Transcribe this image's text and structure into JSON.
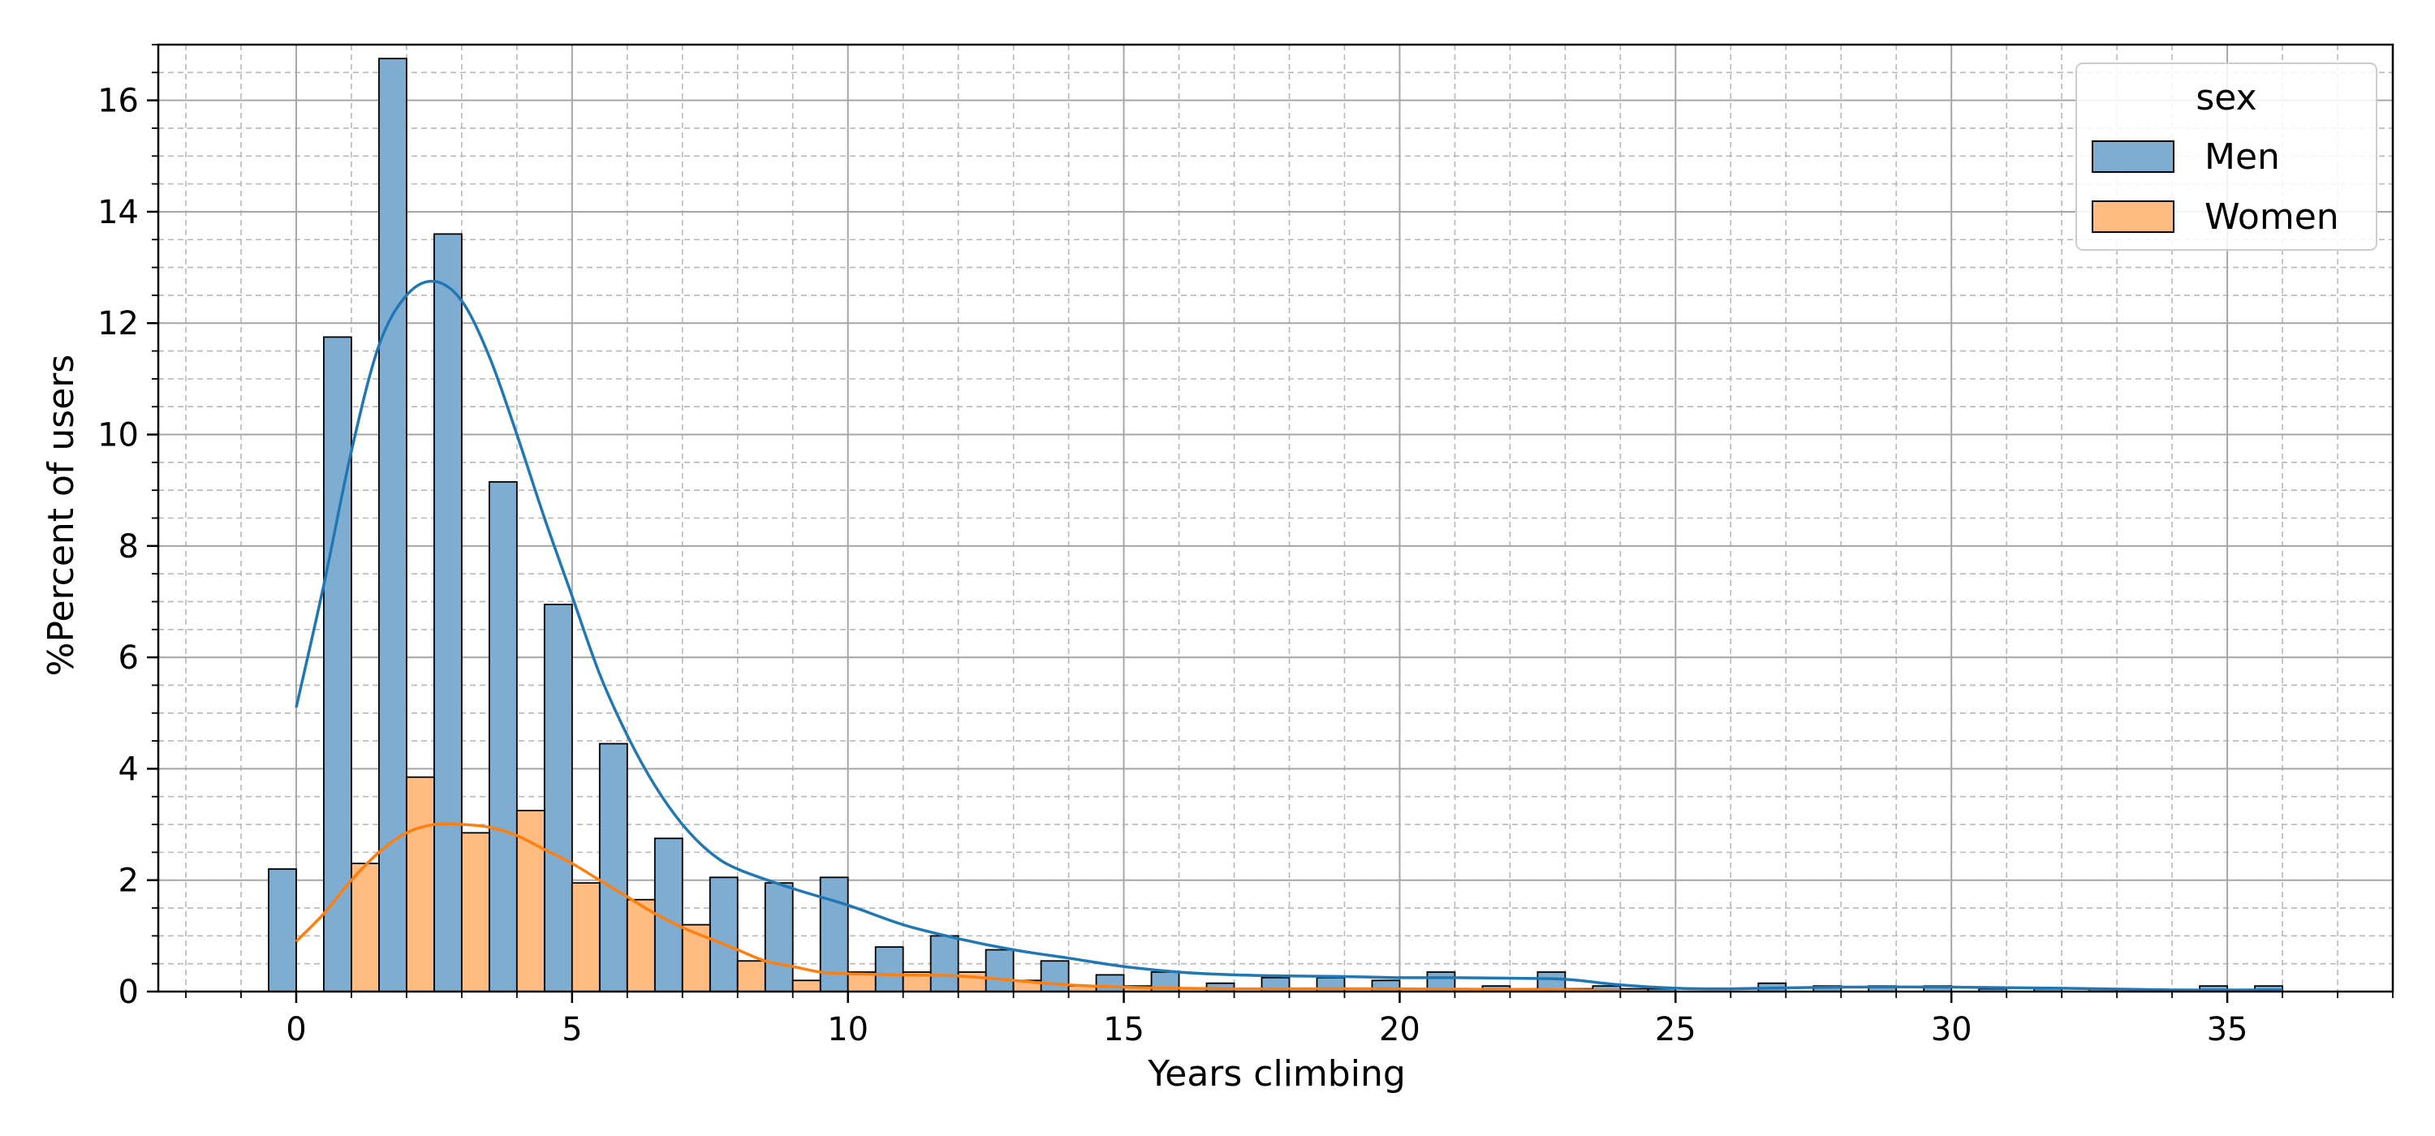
{
  "chart_data": {
    "type": "bar",
    "xlabel": "Years climbing",
    "ylabel": "%Percent of users",
    "xlim": [
      -2.5,
      38.0
    ],
    "ylim": [
      0,
      17.0
    ],
    "x_ticks": [
      0,
      5,
      10,
      15,
      20,
      25,
      30,
      35
    ],
    "y_ticks": [
      0,
      2,
      4,
      6,
      8,
      10,
      12,
      14,
      16
    ],
    "x_minor_step": 1,
    "y_minor_step": 0.5,
    "grid": true,
    "legend": {
      "title": "sex",
      "position": "top-right",
      "entries": [
        "Men",
        "Women"
      ]
    },
    "bar_width": 0.5,
    "series": [
      {
        "name": "Men",
        "color": "#7fadd1",
        "kde_color": "#1f77b4",
        "x": [
          0,
          1,
          2,
          3,
          4,
          5,
          6,
          7,
          8,
          9,
          10,
          11,
          12,
          13,
          14,
          15,
          16,
          17,
          18,
          19,
          20,
          21,
          22,
          23,
          24,
          25,
          26,
          27,
          28,
          29,
          30,
          31,
          32,
          33,
          34,
          35,
          36
        ],
        "values": [
          2.2,
          11.75,
          16.75,
          13.6,
          9.15,
          6.95,
          4.45,
          2.75,
          2.05,
          1.95,
          2.05,
          0.8,
          1.0,
          0.75,
          0.55,
          0.3,
          0.35,
          0.15,
          0.25,
          0.25,
          0.2,
          0.35,
          0.1,
          0.35,
          0.1,
          0.05,
          0.0,
          0.15,
          0.1,
          0.1,
          0.1,
          0.05,
          0.05,
          0.05,
          0.0,
          0.1,
          0.1
        ],
        "kde": {
          "x": [
            0,
            0.5,
            1,
            1.5,
            2,
            2.5,
            3,
            3.5,
            4,
            4.5,
            5,
            5.5,
            6,
            6.5,
            7,
            7.5,
            8,
            9,
            10,
            11,
            12,
            13,
            14,
            15,
            16,
            17,
            18,
            19,
            20,
            21,
            22,
            23,
            24,
            25,
            26,
            28,
            30,
            32,
            34,
            36
          ],
          "y": [
            5.1,
            7.3,
            9.7,
            11.6,
            12.5,
            12.75,
            12.4,
            11.4,
            10.0,
            8.5,
            7.1,
            5.7,
            4.6,
            3.7,
            3.0,
            2.5,
            2.2,
            1.85,
            1.55,
            1.2,
            0.95,
            0.75,
            0.6,
            0.45,
            0.35,
            0.3,
            0.28,
            0.27,
            0.25,
            0.25,
            0.24,
            0.22,
            0.12,
            0.06,
            0.05,
            0.08,
            0.08,
            0.06,
            0.03,
            0.03
          ]
        }
      },
      {
        "name": "Women",
        "color": "#ffbb80",
        "kde_color": "#ff7f0e",
        "x": [
          1,
          2,
          3,
          4,
          5,
          6,
          7,
          8,
          9,
          10,
          11,
          12,
          13,
          14,
          15,
          16,
          17,
          18,
          19,
          20,
          21,
          22,
          23,
          24
        ],
        "values": [
          2.3,
          3.85,
          2.85,
          3.25,
          1.95,
          1.65,
          1.2,
          0.55,
          0.2,
          0.35,
          0.35,
          0.35,
          0.2,
          0.1,
          0.1,
          0.05,
          0.0,
          0.05,
          0.05,
          0.05,
          0.05,
          0.05,
          0.05,
          0.05
        ],
        "kde": {
          "x": [
            0,
            0.5,
            1,
            1.5,
            2,
            2.5,
            3,
            3.5,
            4,
            4.5,
            5,
            5.5,
            6,
            6.5,
            7,
            7.5,
            8,
            8.5,
            9,
            9.5,
            10,
            11,
            12,
            13,
            14,
            15,
            16,
            17,
            18,
            20,
            22,
            24
          ],
          "y": [
            0.9,
            1.4,
            2.0,
            2.5,
            2.85,
            3.0,
            3.0,
            2.95,
            2.8,
            2.55,
            2.3,
            2.0,
            1.7,
            1.4,
            1.15,
            0.95,
            0.75,
            0.55,
            0.45,
            0.35,
            0.32,
            0.3,
            0.28,
            0.2,
            0.12,
            0.08,
            0.06,
            0.05,
            0.05,
            0.05,
            0.04,
            0.02
          ]
        }
      }
    ]
  }
}
